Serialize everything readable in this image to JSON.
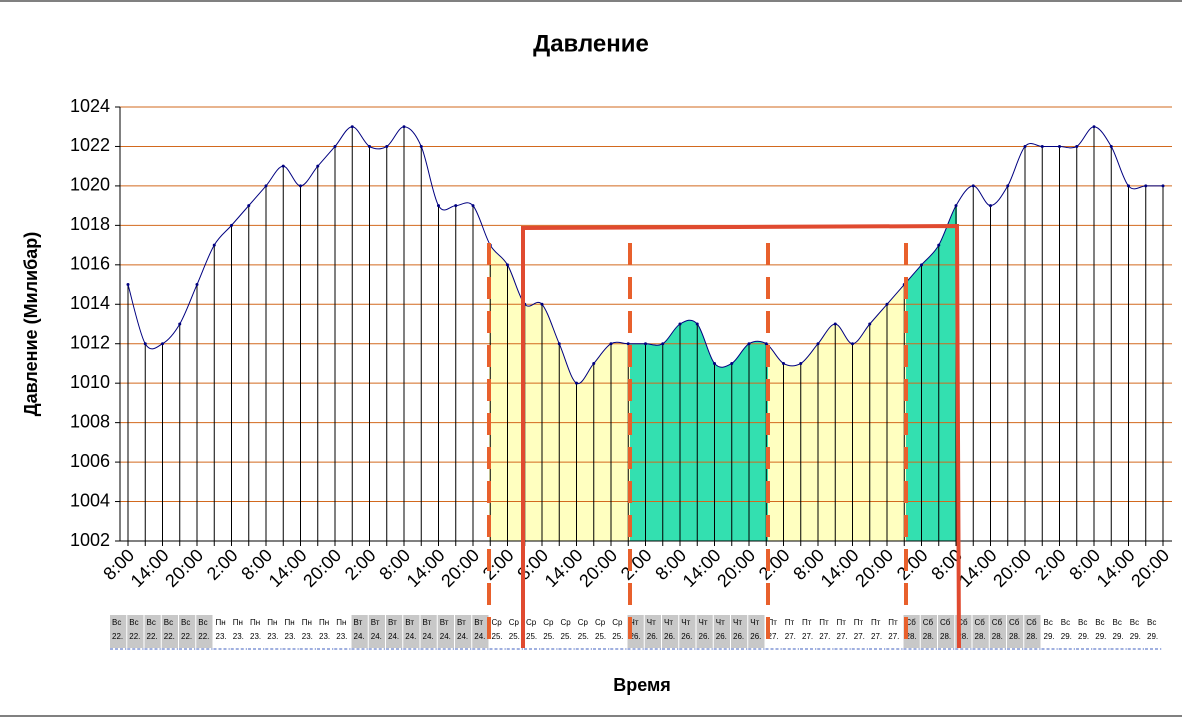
{
  "chart_data": {
    "type": "line",
    "title": "Давление",
    "x_label": "Время",
    "y_label": "Давление (Милибар)",
    "categories": [
      "8:00",
      null,
      "14:00",
      null,
      "20:00",
      null,
      "2:00",
      null,
      "8:00",
      null,
      "14:00",
      null,
      "20:00",
      null,
      "2:00",
      null,
      "8:00",
      null,
      "14:00",
      null,
      "20:00",
      null,
      "2:00",
      null,
      "8:00",
      null,
      "14:00",
      null,
      "20:00",
      null,
      "2:00",
      null,
      "8:00",
      null,
      "14:00",
      null,
      "20:00",
      null,
      "2:00",
      null,
      "8:00",
      null,
      "14:00",
      null,
      "20:00",
      null,
      "2:00",
      null,
      "8:00",
      null,
      "14:00",
      null,
      "20:00",
      null,
      "2:00",
      null,
      "8:00",
      null,
      "14:00",
      null,
      "20:00"
    ],
    "day_names": [
      "Вс",
      "Вс",
      "Вс",
      "Вс",
      "Вс",
      "Вс",
      "Пн",
      "Пн",
      "Пн",
      "Пн",
      "Пн",
      "Пн",
      "Пн",
      "Пн",
      "Вт",
      "Вт",
      "Вт",
      "Вт",
      "Вт",
      "Вт",
      "Вт",
      "Вт",
      "Ср",
      "Ср",
      "Ср",
      "Ср",
      "Ср",
      "Ср",
      "Ср",
      "Ср",
      "Чт",
      "Чт",
      "Чт",
      "Чт",
      "Чт",
      "Чт",
      "Чт",
      "Чт",
      "Пт",
      "Пт",
      "Пт",
      "Пт",
      "Пт",
      "Пт",
      "Пт",
      "Пт",
      "Сб",
      "Сб",
      "Сб",
      "Сб",
      "Сб",
      "Сб",
      "Сб",
      "Сб",
      "Вс",
      "Вс",
      "Вс",
      "Вс",
      "Вс",
      "Вс",
      "Вс"
    ],
    "day_dates": [
      "22.",
      "22.",
      "22.",
      "22.",
      "22.",
      "22.",
      "23.",
      "23.",
      "23.",
      "23.",
      "23.",
      "23.",
      "23.",
      "23.",
      "24.",
      "24.",
      "24.",
      "24.",
      "24.",
      "24.",
      "24.",
      "24.",
      "25.",
      "25.",
      "25.",
      "25.",
      "25.",
      "25.",
      "25.",
      "25.",
      "26.",
      "26.",
      "26.",
      "26.",
      "26.",
      "26.",
      "26.",
      "26.",
      "27.",
      "27.",
      "27.",
      "27.",
      "27.",
      "27.",
      "27.",
      "27.",
      "28.",
      "28.",
      "28.",
      "28.",
      "28.",
      "28.",
      "28.",
      "28.",
      "29.",
      "29.",
      "29.",
      "29.",
      "29.",
      "29.",
      "29."
    ],
    "series": [
      {
        "name": "Давление",
        "color": "#000080",
        "values": [
          1015,
          1012,
          1012,
          1013,
          1015,
          1017,
          1018,
          1019,
          1020,
          1021,
          1020,
          1021,
          1022,
          1023,
          1022,
          1022,
          1023,
          1022,
          1019,
          1019,
          1019,
          1017,
          1016,
          1014,
          1014,
          1012,
          1010,
          1011,
          1012,
          1012,
          1012,
          1012,
          1013,
          1013,
          1011,
          1011,
          1012,
          1012,
          1011,
          1011,
          1012,
          1013,
          1012,
          1013,
          1014,
          1015,
          1016,
          1017,
          1019,
          1020,
          1019,
          1020,
          1022,
          1022,
          1022,
          1022,
          1023,
          1022,
          1020,
          1020,
          1020
        ]
      }
    ],
    "ylim": [
      1002,
      1024
    ],
    "yticks": [
      1002,
      1004,
      1006,
      1008,
      1010,
      1012,
      1014,
      1016,
      1018,
      1020,
      1022,
      1024
    ],
    "grid": true,
    "grid_color": "#d2691e"
  }
}
